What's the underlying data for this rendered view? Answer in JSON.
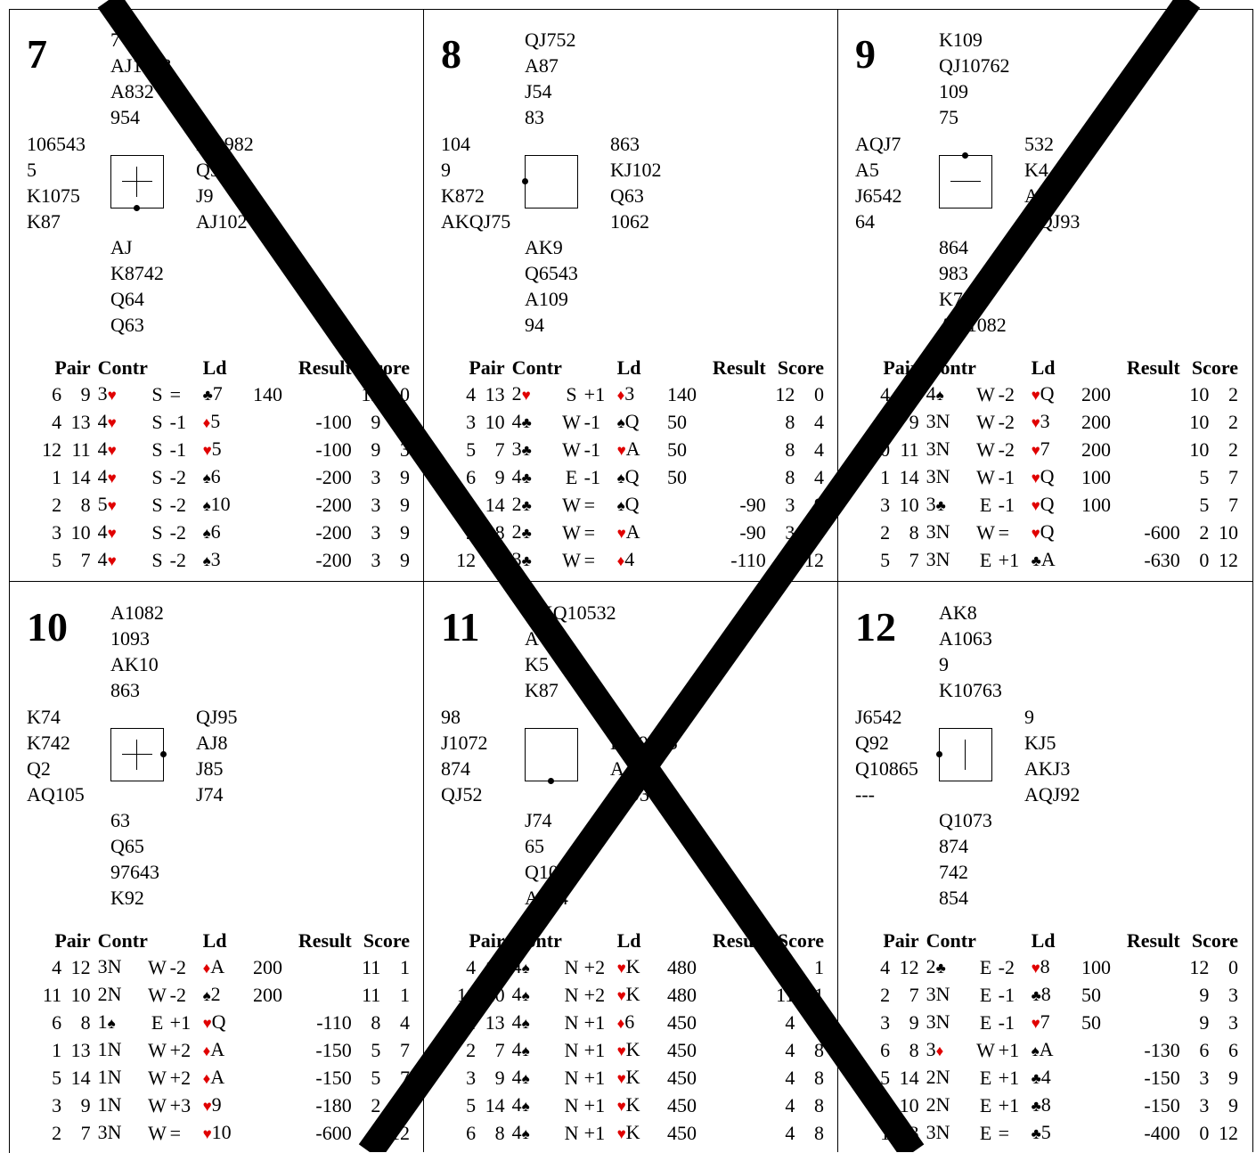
{
  "headers": {
    "pair": "Pair",
    "contract": "Contr",
    "lead": "Ld",
    "result": "Result",
    "score": "Score"
  },
  "colors": {
    "red_suit": "#e00000",
    "cross": "#000000"
  },
  "boards": [
    {
      "number": "7",
      "dealer": "S",
      "vulnerability": "Both",
      "north": [
        "7",
        "AJ1063",
        "A832",
        "954"
      ],
      "west": [
        "106543",
        "5",
        "K1075",
        "K87"
      ],
      "east": [
        "KQ982",
        "Q9",
        "J9",
        "AJ102"
      ],
      "south": [
        "AJ",
        "K8742",
        "Q64",
        "Q63"
      ],
      "results": [
        {
          "p1": "6",
          "p2": "9",
          "level": "3",
          "suit": "♥",
          "dec": "S",
          "res": "=",
          "ld_suit": "♣",
          "ld_card": "7",
          "ns": "140",
          "ew": "",
          "s1": "12",
          "s2": "0"
        },
        {
          "p1": "4",
          "p2": "13",
          "level": "4",
          "suit": "♥",
          "dec": "S",
          "res": "-1",
          "ld_suit": "♦",
          "ld_card": "5",
          "ns": "",
          "ew": "-100",
          "s1": "9",
          "s2": "3"
        },
        {
          "p1": "12",
          "p2": "11",
          "level": "4",
          "suit": "♥",
          "dec": "S",
          "res": "-1",
          "ld_suit": "♥",
          "ld_card": "5",
          "ns": "",
          "ew": "-100",
          "s1": "9",
          "s2": "3"
        },
        {
          "p1": "1",
          "p2": "14",
          "level": "4",
          "suit": "♥",
          "dec": "S",
          "res": "-2",
          "ld_suit": "♠",
          "ld_card": "6",
          "ns": "",
          "ew": "-200",
          "s1": "3",
          "s2": "9"
        },
        {
          "p1": "2",
          "p2": "8",
          "level": "5",
          "suit": "♥",
          "dec": "S",
          "res": "-2",
          "ld_suit": "♠",
          "ld_card": "10",
          "ns": "",
          "ew": "-200",
          "s1": "3",
          "s2": "9"
        },
        {
          "p1": "3",
          "p2": "10",
          "level": "4",
          "suit": "♥",
          "dec": "S",
          "res": "-2",
          "ld_suit": "♠",
          "ld_card": "6",
          "ns": "",
          "ew": "-200",
          "s1": "3",
          "s2": "9"
        },
        {
          "p1": "5",
          "p2": "7",
          "level": "4",
          "suit": "♥",
          "dec": "S",
          "res": "-2",
          "ld_suit": "♠",
          "ld_card": "3",
          "ns": "",
          "ew": "-200",
          "s1": "3",
          "s2": "9"
        }
      ]
    },
    {
      "number": "8",
      "dealer": "W",
      "vulnerability": "None",
      "north": [
        "QJ752",
        "A87",
        "J54",
        "83"
      ],
      "west": [
        "104",
        "9",
        "K872",
        "AKQJ75"
      ],
      "east": [
        "863",
        "KJ102",
        "Q63",
        "1062"
      ],
      "south": [
        "AK9",
        "Q6543",
        "A109",
        "94"
      ],
      "results": [
        {
          "p1": "4",
          "p2": "13",
          "level": "2",
          "suit": "♥",
          "dec": "S",
          "res": "+1",
          "ld_suit": "♦",
          "ld_card": "3",
          "ns": "140",
          "ew": "",
          "s1": "12",
          "s2": "0"
        },
        {
          "p1": "3",
          "p2": "10",
          "level": "4",
          "suit": "♣",
          "dec": "W",
          "res": "-1",
          "ld_suit": "♠",
          "ld_card": "Q",
          "ns": "50",
          "ew": "",
          "s1": "8",
          "s2": "4"
        },
        {
          "p1": "5",
          "p2": "7",
          "level": "3",
          "suit": "♣",
          "dec": "W",
          "res": "-1",
          "ld_suit": "♥",
          "ld_card": "A",
          "ns": "50",
          "ew": "",
          "s1": "8",
          "s2": "4"
        },
        {
          "p1": "6",
          "p2": "9",
          "level": "4",
          "suit": "♣",
          "dec": "E",
          "res": "-1",
          "ld_suit": "♠",
          "ld_card": "Q",
          "ns": "50",
          "ew": "",
          "s1": "8",
          "s2": "4"
        },
        {
          "p1": "1",
          "p2": "14",
          "level": "2",
          "suit": "♣",
          "dec": "W",
          "res": "=",
          "ld_suit": "♠",
          "ld_card": "Q",
          "ns": "",
          "ew": "-90",
          "s1": "3",
          "s2": "9"
        },
        {
          "p1": "2",
          "p2": "8",
          "level": "2",
          "suit": "♣",
          "dec": "W",
          "res": "=",
          "ld_suit": "♥",
          "ld_card": "A",
          "ns": "",
          "ew": "-90",
          "s1": "3",
          "s2": "9"
        },
        {
          "p1": "12",
          "p2": "11",
          "level": "3",
          "suit": "♣",
          "dec": "W",
          "res": "=",
          "ld_suit": "♦",
          "ld_card": "4",
          "ns": "",
          "ew": "-110",
          "s1": "0",
          "s2": "12"
        }
      ]
    },
    {
      "number": "9",
      "dealer": "N",
      "vulnerability": "EW",
      "north": [
        "K109",
        "QJ10762",
        "109",
        "75"
      ],
      "west": [
        "AQJ7",
        "A5",
        "J6542",
        "64"
      ],
      "east": [
        "532",
        "K4",
        "AQ8",
        "AQJ93"
      ],
      "south": [
        "864",
        "983",
        "K73",
        "AK1082"
      ],
      "results": [
        {
          "p1": "4",
          "p2": "12",
          "level": "4",
          "suit": "♠",
          "dec": "W",
          "res": "-2",
          "ld_suit": "♥",
          "ld_card": "Q",
          "ns": "200",
          "ew": "",
          "s1": "10",
          "s2": "2"
        },
        {
          "p1": "6",
          "p2": "9",
          "level": "3N",
          "suit": "",
          "dec": "W",
          "res": "-2",
          "ld_suit": "♥",
          "ld_card": "3",
          "ns": "200",
          "ew": "",
          "s1": "10",
          "s2": "2"
        },
        {
          "p1": "10",
          "p2": "11",
          "level": "3N",
          "suit": "",
          "dec": "W",
          "res": "-2",
          "ld_suit": "♥",
          "ld_card": "7",
          "ns": "200",
          "ew": "",
          "s1": "10",
          "s2": "2"
        },
        {
          "p1": "1",
          "p2": "14",
          "level": "3N",
          "suit": "",
          "dec": "W",
          "res": "-1",
          "ld_suit": "♥",
          "ld_card": "Q",
          "ns": "100",
          "ew": "",
          "s1": "5",
          "s2": "7"
        },
        {
          "p1": "3",
          "p2": "10",
          "level": "3",
          "suit": "♣",
          "dec": "E",
          "res": "-1",
          "ld_suit": "♥",
          "ld_card": "Q",
          "ns": "100",
          "ew": "",
          "s1": "5",
          "s2": "7"
        },
        {
          "p1": "2",
          "p2": "8",
          "level": "3N",
          "suit": "",
          "dec": "W",
          "res": "=",
          "ld_suit": "♥",
          "ld_card": "Q",
          "ns": "",
          "ew": "-600",
          "s1": "2",
          "s2": "10"
        },
        {
          "p1": "5",
          "p2": "7",
          "level": "3N",
          "suit": "",
          "dec": "E",
          "res": "+1",
          "ld_suit": "♣",
          "ld_card": "A",
          "ns": "",
          "ew": "-630",
          "s1": "0",
          "s2": "12"
        }
      ]
    },
    {
      "number": "10",
      "dealer": "E",
      "vulnerability": "Both",
      "north": [
        "A1082",
        "1093",
        "AK10",
        "863"
      ],
      "west": [
        "K74",
        "K742",
        "Q2",
        "AQ105"
      ],
      "east": [
        "QJ95",
        "AJ8",
        "J85",
        "J74"
      ],
      "south": [
        "63",
        "Q65",
        "97643",
        "K92"
      ],
      "results": [
        {
          "p1": "4",
          "p2": "12",
          "level": "3N",
          "suit": "",
          "dec": "W",
          "res": "-2",
          "ld_suit": "♦",
          "ld_card": "A",
          "ns": "200",
          "ew": "",
          "s1": "11",
          "s2": "1"
        },
        {
          "p1": "11",
          "p2": "10",
          "level": "2N",
          "suit": "",
          "dec": "W",
          "res": "-2",
          "ld_suit": "♠",
          "ld_card": "2",
          "ns": "200",
          "ew": "",
          "s1": "11",
          "s2": "1"
        },
        {
          "p1": "6",
          "p2": "8",
          "level": "1",
          "suit": "♠",
          "dec": "E",
          "res": "+1",
          "ld_suit": "♥",
          "ld_card": "Q",
          "ns": "",
          "ew": "-110",
          "s1": "8",
          "s2": "4"
        },
        {
          "p1": "1",
          "p2": "13",
          "level": "1N",
          "suit": "",
          "dec": "W",
          "res": "+2",
          "ld_suit": "♦",
          "ld_card": "A",
          "ns": "",
          "ew": "-150",
          "s1": "5",
          "s2": "7"
        },
        {
          "p1": "5",
          "p2": "14",
          "level": "1N",
          "suit": "",
          "dec": "W",
          "res": "+2",
          "ld_suit": "♦",
          "ld_card": "A",
          "ns": "",
          "ew": "-150",
          "s1": "5",
          "s2": "7"
        },
        {
          "p1": "3",
          "p2": "9",
          "level": "1N",
          "suit": "",
          "dec": "W",
          "res": "+3",
          "ld_suit": "♥",
          "ld_card": "9",
          "ns": "",
          "ew": "-180",
          "s1": "2",
          "s2": "10"
        },
        {
          "p1": "2",
          "p2": "7",
          "level": "3N",
          "suit": "",
          "dec": "W",
          "res": "=",
          "ld_suit": "♥",
          "ld_card": "10",
          "ns": "",
          "ew": "-600",
          "s1": "0",
          "s2": "12"
        }
      ]
    },
    {
      "number": "11",
      "dealer": "S",
      "vulnerability": "None",
      "north": [
        "AKQ10532",
        "A",
        "K5",
        "K87"
      ],
      "west": [
        "98",
        "J1072",
        "874",
        "QJ52"
      ],
      "east": [
        "J",
        "KQ9843",
        "AJ",
        "1093"
      ],
      "south": [
        "J74",
        "65",
        "Q1082",
        "A654"
      ],
      "results": [
        {
          "p1": "4",
          "p2": "12",
          "level": "4",
          "suit": "♠",
          "dec": "N",
          "res": "+2",
          "ld_suit": "♥",
          "ld_card": "K",
          "ns": "480",
          "ew": "",
          "s1": "11",
          "s2": "1"
        },
        {
          "p1": "11",
          "p2": "10",
          "level": "4",
          "suit": "♠",
          "dec": "N",
          "res": "+2",
          "ld_suit": "♥",
          "ld_card": "K",
          "ns": "480",
          "ew": "",
          "s1": "11",
          "s2": "1"
        },
        {
          "p1": "1",
          "p2": "13",
          "level": "4",
          "suit": "♠",
          "dec": "N",
          "res": "+1",
          "ld_suit": "♦",
          "ld_card": "6",
          "ns": "450",
          "ew": "",
          "s1": "4",
          "s2": "8"
        },
        {
          "p1": "2",
          "p2": "7",
          "level": "4",
          "suit": "♠",
          "dec": "N",
          "res": "+1",
          "ld_suit": "♥",
          "ld_card": "K",
          "ns": "450",
          "ew": "",
          "s1": "4",
          "s2": "8"
        },
        {
          "p1": "3",
          "p2": "9",
          "level": "4",
          "suit": "♠",
          "dec": "N",
          "res": "+1",
          "ld_suit": "♥",
          "ld_card": "K",
          "ns": "450",
          "ew": "",
          "s1": "4",
          "s2": "8"
        },
        {
          "p1": "5",
          "p2": "14",
          "level": "4",
          "suit": "♠",
          "dec": "N",
          "res": "+1",
          "ld_suit": "♥",
          "ld_card": "K",
          "ns": "450",
          "ew": "",
          "s1": "4",
          "s2": "8"
        },
        {
          "p1": "6",
          "p2": "8",
          "level": "4",
          "suit": "♠",
          "dec": "N",
          "res": "+1",
          "ld_suit": "♥",
          "ld_card": "K",
          "ns": "450",
          "ew": "",
          "s1": "4",
          "s2": "8"
        }
      ]
    },
    {
      "number": "12",
      "dealer": "W",
      "vulnerability": "NS",
      "north": [
        "AK8",
        "A1063",
        "9",
        "K10763"
      ],
      "west": [
        "J6542",
        "Q92",
        "Q10865",
        "---"
      ],
      "east": [
        "9",
        "KJ5",
        "AKJ3",
        "AQJ92"
      ],
      "south": [
        "Q1073",
        "874",
        "742",
        "854"
      ],
      "results": [
        {
          "p1": "4",
          "p2": "12",
          "level": "2",
          "suit": "♣",
          "dec": "E",
          "res": "-2",
          "ld_suit": "♥",
          "ld_card": "8",
          "ns": "100",
          "ew": "",
          "s1": "12",
          "s2": "0"
        },
        {
          "p1": "2",
          "p2": "7",
          "level": "3N",
          "suit": "",
          "dec": "E",
          "res": "-1",
          "ld_suit": "♣",
          "ld_card": "8",
          "ns": "50",
          "ew": "",
          "s1": "9",
          "s2": "3"
        },
        {
          "p1": "3",
          "p2": "9",
          "level": "3N",
          "suit": "",
          "dec": "E",
          "res": "-1",
          "ld_suit": "♥",
          "ld_card": "7",
          "ns": "50",
          "ew": "",
          "s1": "9",
          "s2": "3"
        },
        {
          "p1": "6",
          "p2": "8",
          "level": "3",
          "suit": "♦",
          "dec": "W",
          "res": "+1",
          "ld_suit": "♠",
          "ld_card": "A",
          "ns": "",
          "ew": "-130",
          "s1": "6",
          "s2": "6"
        },
        {
          "p1": "5",
          "p2": "14",
          "level": "2N",
          "suit": "",
          "dec": "E",
          "res": "+1",
          "ld_suit": "♣",
          "ld_card": "4",
          "ns": "",
          "ew": "-150",
          "s1": "3",
          "s2": "9"
        },
        {
          "p1": "11",
          "p2": "10",
          "level": "2N",
          "suit": "",
          "dec": "E",
          "res": "+1",
          "ld_suit": "♣",
          "ld_card": "8",
          "ns": "",
          "ew": "-150",
          "s1": "3",
          "s2": "9"
        },
        {
          "p1": "1",
          "p2": "13",
          "level": "3N",
          "suit": "",
          "dec": "E",
          "res": "=",
          "ld_suit": "♣",
          "ld_card": "5",
          "ns": "",
          "ew": "-400",
          "s1": "0",
          "s2": "12"
        }
      ]
    }
  ]
}
